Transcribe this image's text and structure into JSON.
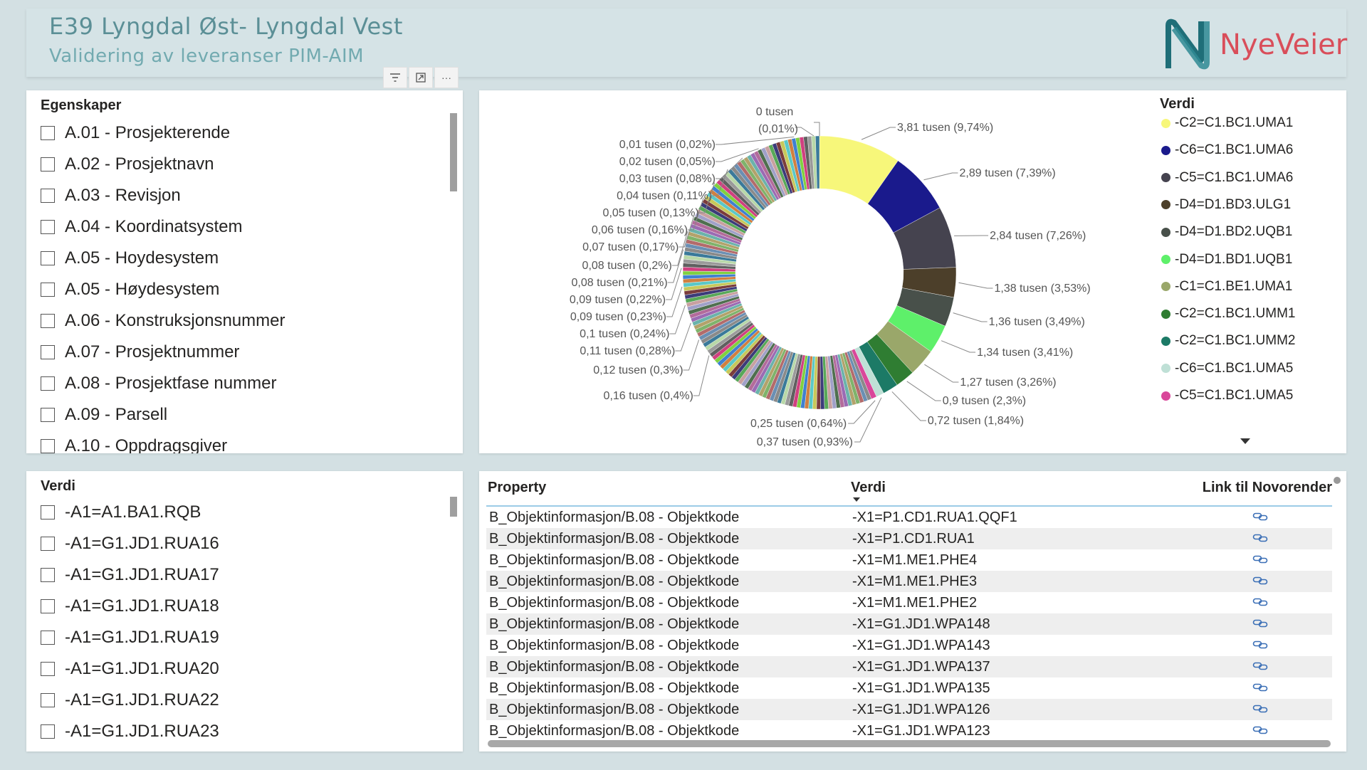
{
  "header": {
    "title": "E39 Lyngdal Øst- Lyngdal Vest",
    "subtitle": "Validering av leveranser PIM-AIM",
    "logo_text": "NyeVeier"
  },
  "visual_header": {
    "icons": [
      "filter-icon",
      "focus-mode-icon",
      "more-options-icon"
    ],
    "more_label": "···"
  },
  "egenskaper": {
    "title": "Egenskaper",
    "items": [
      "A.01 - Prosjekterende",
      "A.02 - Prosjektnavn",
      "A.03 - Revisjon",
      "A.04 - Koordinatsystem",
      "A.05 - Hoydesystem",
      "A.05 - Høydesystem",
      "A.06 - Konstruksjonsnummer",
      "A.07 - Prosjektnummer",
      "A.08 - Prosjektfase nummer",
      "A.09 - Parsell",
      "A.10 - Oppdragsgiver"
    ]
  },
  "verdi_slicer": {
    "title": "Verdi",
    "items": [
      "-A1=A1.BA1.RQB",
      "-A1=G1.JD1.RUA16",
      "-A1=G1.JD1.RUA17",
      "-A1=G1.JD1.RUA18",
      "-A1=G1.JD1.RUA19",
      "-A1=G1.JD1.RUA20",
      "-A1=G1.JD1.RUA22",
      "-A1=G1.JD1.RUA23"
    ]
  },
  "chart_data": {
    "type": "pie",
    "donut": true,
    "legend_title": "Verdi",
    "legend_position": "right",
    "unit": "tusen",
    "slices": [
      {
        "name": "-C2=C1.BC1.UMA1",
        "value": 3.81,
        "percent": 9.74,
        "label": "3,81 tusen (9,74%)",
        "color": "#f7f77a"
      },
      {
        "name": "-C6=C1.BC1.UMA6",
        "value": 2.89,
        "percent": 7.39,
        "label": "2,89 tusen (7,39%)",
        "color": "#1a1a8c"
      },
      {
        "name": "-C5=C1.BC1.UMA6",
        "value": 2.84,
        "percent": 7.26,
        "label": "2,84 tusen (7,26%)",
        "color": "#45434f"
      },
      {
        "name": "-D4=D1.BD3.ULG1",
        "value": 1.38,
        "percent": 3.53,
        "label": "1,38 tusen (3,53%)",
        "color": "#4c3f2a"
      },
      {
        "name": "-D4=D1.BD2.UQB1",
        "value": 1.36,
        "percent": 3.49,
        "label": "1,36 tusen (3,49%)",
        "color": "#48504a"
      },
      {
        "name": "-D4=D1.BD1.UQB1",
        "value": 1.34,
        "percent": 3.41,
        "label": "1,34 tusen (3,41%)",
        "color": "#5ef06a"
      },
      {
        "name": "-C1=C1.BE1.UMA1",
        "value": 1.27,
        "percent": 3.26,
        "label": "1,27 tusen (3,26%)",
        "color": "#9aa76a"
      },
      {
        "name": "-C2=C1.BC1.UMM1",
        "value": 0.9,
        "percent": 2.3,
        "label": "0,9 tusen (2,3%)",
        "color": "#2f7d32"
      },
      {
        "name": "-C2=C1.BC1.UMM2",
        "value": 0.72,
        "percent": 1.84,
        "label": "0,72 tusen (1,84%)",
        "color": "#1c7a66"
      },
      {
        "name": "-C6=C1.BC1.UMA5",
        "value": 0.37,
        "percent": 0.93,
        "label": "0,37 tusen (0,93%)",
        "color": "#bfe0d6"
      },
      {
        "name": "-C5=C1.BC1.UMA5",
        "value": 0.25,
        "percent": 0.64,
        "label": "0,25 tusen (0,64%)",
        "color": "#d9479a"
      }
    ],
    "other_labels": [
      "0 tusen",
      "0,01 tusen (0,02%)",
      "(0,01%)",
      "0,02 tusen (0,05%)",
      "0,03 tusen (0,08%)",
      "0,04 tusen (0,11%)",
      "0,05 tusen (0,13%)",
      "0,06 tusen (0,16%)",
      "0,07 tusen (0,17%)",
      "0,08 tusen (0,2%)",
      "0,08 tusen (0,21%)",
      "0,09 tusen (0,22%)",
      "0,09 tusen (0,23%)",
      "0,1 tusen (0,24%)",
      "0,11 tusen (0,28%)",
      "0,12 tusen (0,3%)",
      "0,16 tusen (0,4%)"
    ]
  },
  "table": {
    "columns": [
      "Property",
      "Verdi",
      "Link til Novorender"
    ],
    "rows": [
      [
        "B_Objektinformasjon/B.08 - Objektkode",
        "-X1=P1.CD1.RUA1.QQF1"
      ],
      [
        "B_Objektinformasjon/B.08 - Objektkode",
        "-X1=P1.CD1.RUA1"
      ],
      [
        "B_Objektinformasjon/B.08 - Objektkode",
        "-X1=M1.ME1.PHE4"
      ],
      [
        "B_Objektinformasjon/B.08 - Objektkode",
        "-X1=M1.ME1.PHE3"
      ],
      [
        "B_Objektinformasjon/B.08 - Objektkode",
        "-X1=M1.ME1.PHE2"
      ],
      [
        "B_Objektinformasjon/B.08 - Objektkode",
        "-X1=G1.JD1.WPA148"
      ],
      [
        "B_Objektinformasjon/B.08 - Objektkode",
        "-X1=G1.JD1.WPA143"
      ],
      [
        "B_Objektinformasjon/B.08 - Objektkode",
        "-X1=G1.JD1.WPA137"
      ],
      [
        "B_Objektinformasjon/B.08 - Objektkode",
        "-X1=G1.JD1.WPA135"
      ],
      [
        "B_Objektinformasjon/B.08 - Objektkode",
        "-X1=G1.JD1.WPA126"
      ],
      [
        "B_Objektinformasjon/B.08 - Objektkode",
        "-X1=G1.JD1.WPA123"
      ]
    ]
  },
  "colors": {
    "background": "#d3e0e3",
    "title": "#5b8f96",
    "logo_accent": "#d94e5a",
    "logo_mark": "#1f6e78"
  }
}
